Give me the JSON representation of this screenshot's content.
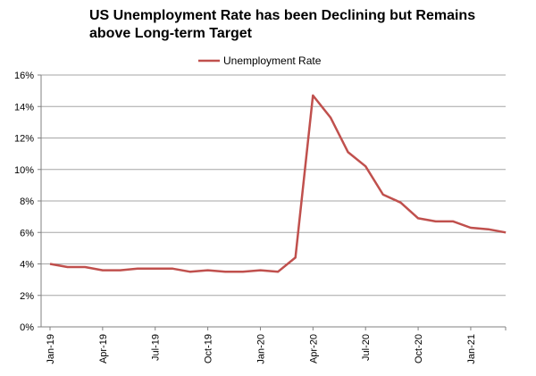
{
  "chart_data": {
    "type": "line",
    "title_line1": "US Unemployment Rate has been Declining but Remains",
    "title_line2": "above Long-term Target",
    "xlabel": "",
    "ylabel": "",
    "ylim": [
      0,
      16
    ],
    "y_ticks": [
      "0%",
      "2%",
      "4%",
      "6%",
      "8%",
      "10%",
      "12%",
      "14%",
      "16%"
    ],
    "x_tick_labels": [
      {
        "index": 0,
        "label": "Jan-19"
      },
      {
        "index": 3,
        "label": "Apr-19"
      },
      {
        "index": 6,
        "label": "Jul-19"
      },
      {
        "index": 9,
        "label": "Oct-19"
      },
      {
        "index": 12,
        "label": "Jan-20"
      },
      {
        "index": 15,
        "label": "Apr-20"
      },
      {
        "index": 18,
        "label": "Jul-20"
      },
      {
        "index": 21,
        "label": "Oct-20"
      },
      {
        "index": 24,
        "label": "Jan-21"
      }
    ],
    "categories": [
      "Jan-19",
      "Feb-19",
      "Mar-19",
      "Apr-19",
      "May-19",
      "Jun-19",
      "Jul-19",
      "Aug-19",
      "Sep-19",
      "Oct-19",
      "Nov-19",
      "Dec-19",
      "Jan-20",
      "Feb-20",
      "Mar-20",
      "Apr-20",
      "May-20",
      "Jun-20",
      "Jul-20",
      "Aug-20",
      "Sep-20",
      "Oct-20",
      "Nov-20",
      "Dec-20",
      "Jan-21",
      "Feb-21",
      "Mar-21"
    ],
    "grid": true,
    "legend_position": "top-center",
    "series": [
      {
        "name": "Unemployment Rate",
        "color": "#c0504d",
        "values": [
          4.0,
          3.8,
          3.8,
          3.6,
          3.6,
          3.7,
          3.7,
          3.7,
          3.5,
          3.6,
          3.5,
          3.5,
          3.6,
          3.5,
          4.4,
          14.7,
          13.3,
          11.1,
          10.2,
          8.4,
          7.9,
          6.9,
          6.7,
          6.7,
          6.3,
          6.2,
          6.0
        ]
      }
    ]
  }
}
